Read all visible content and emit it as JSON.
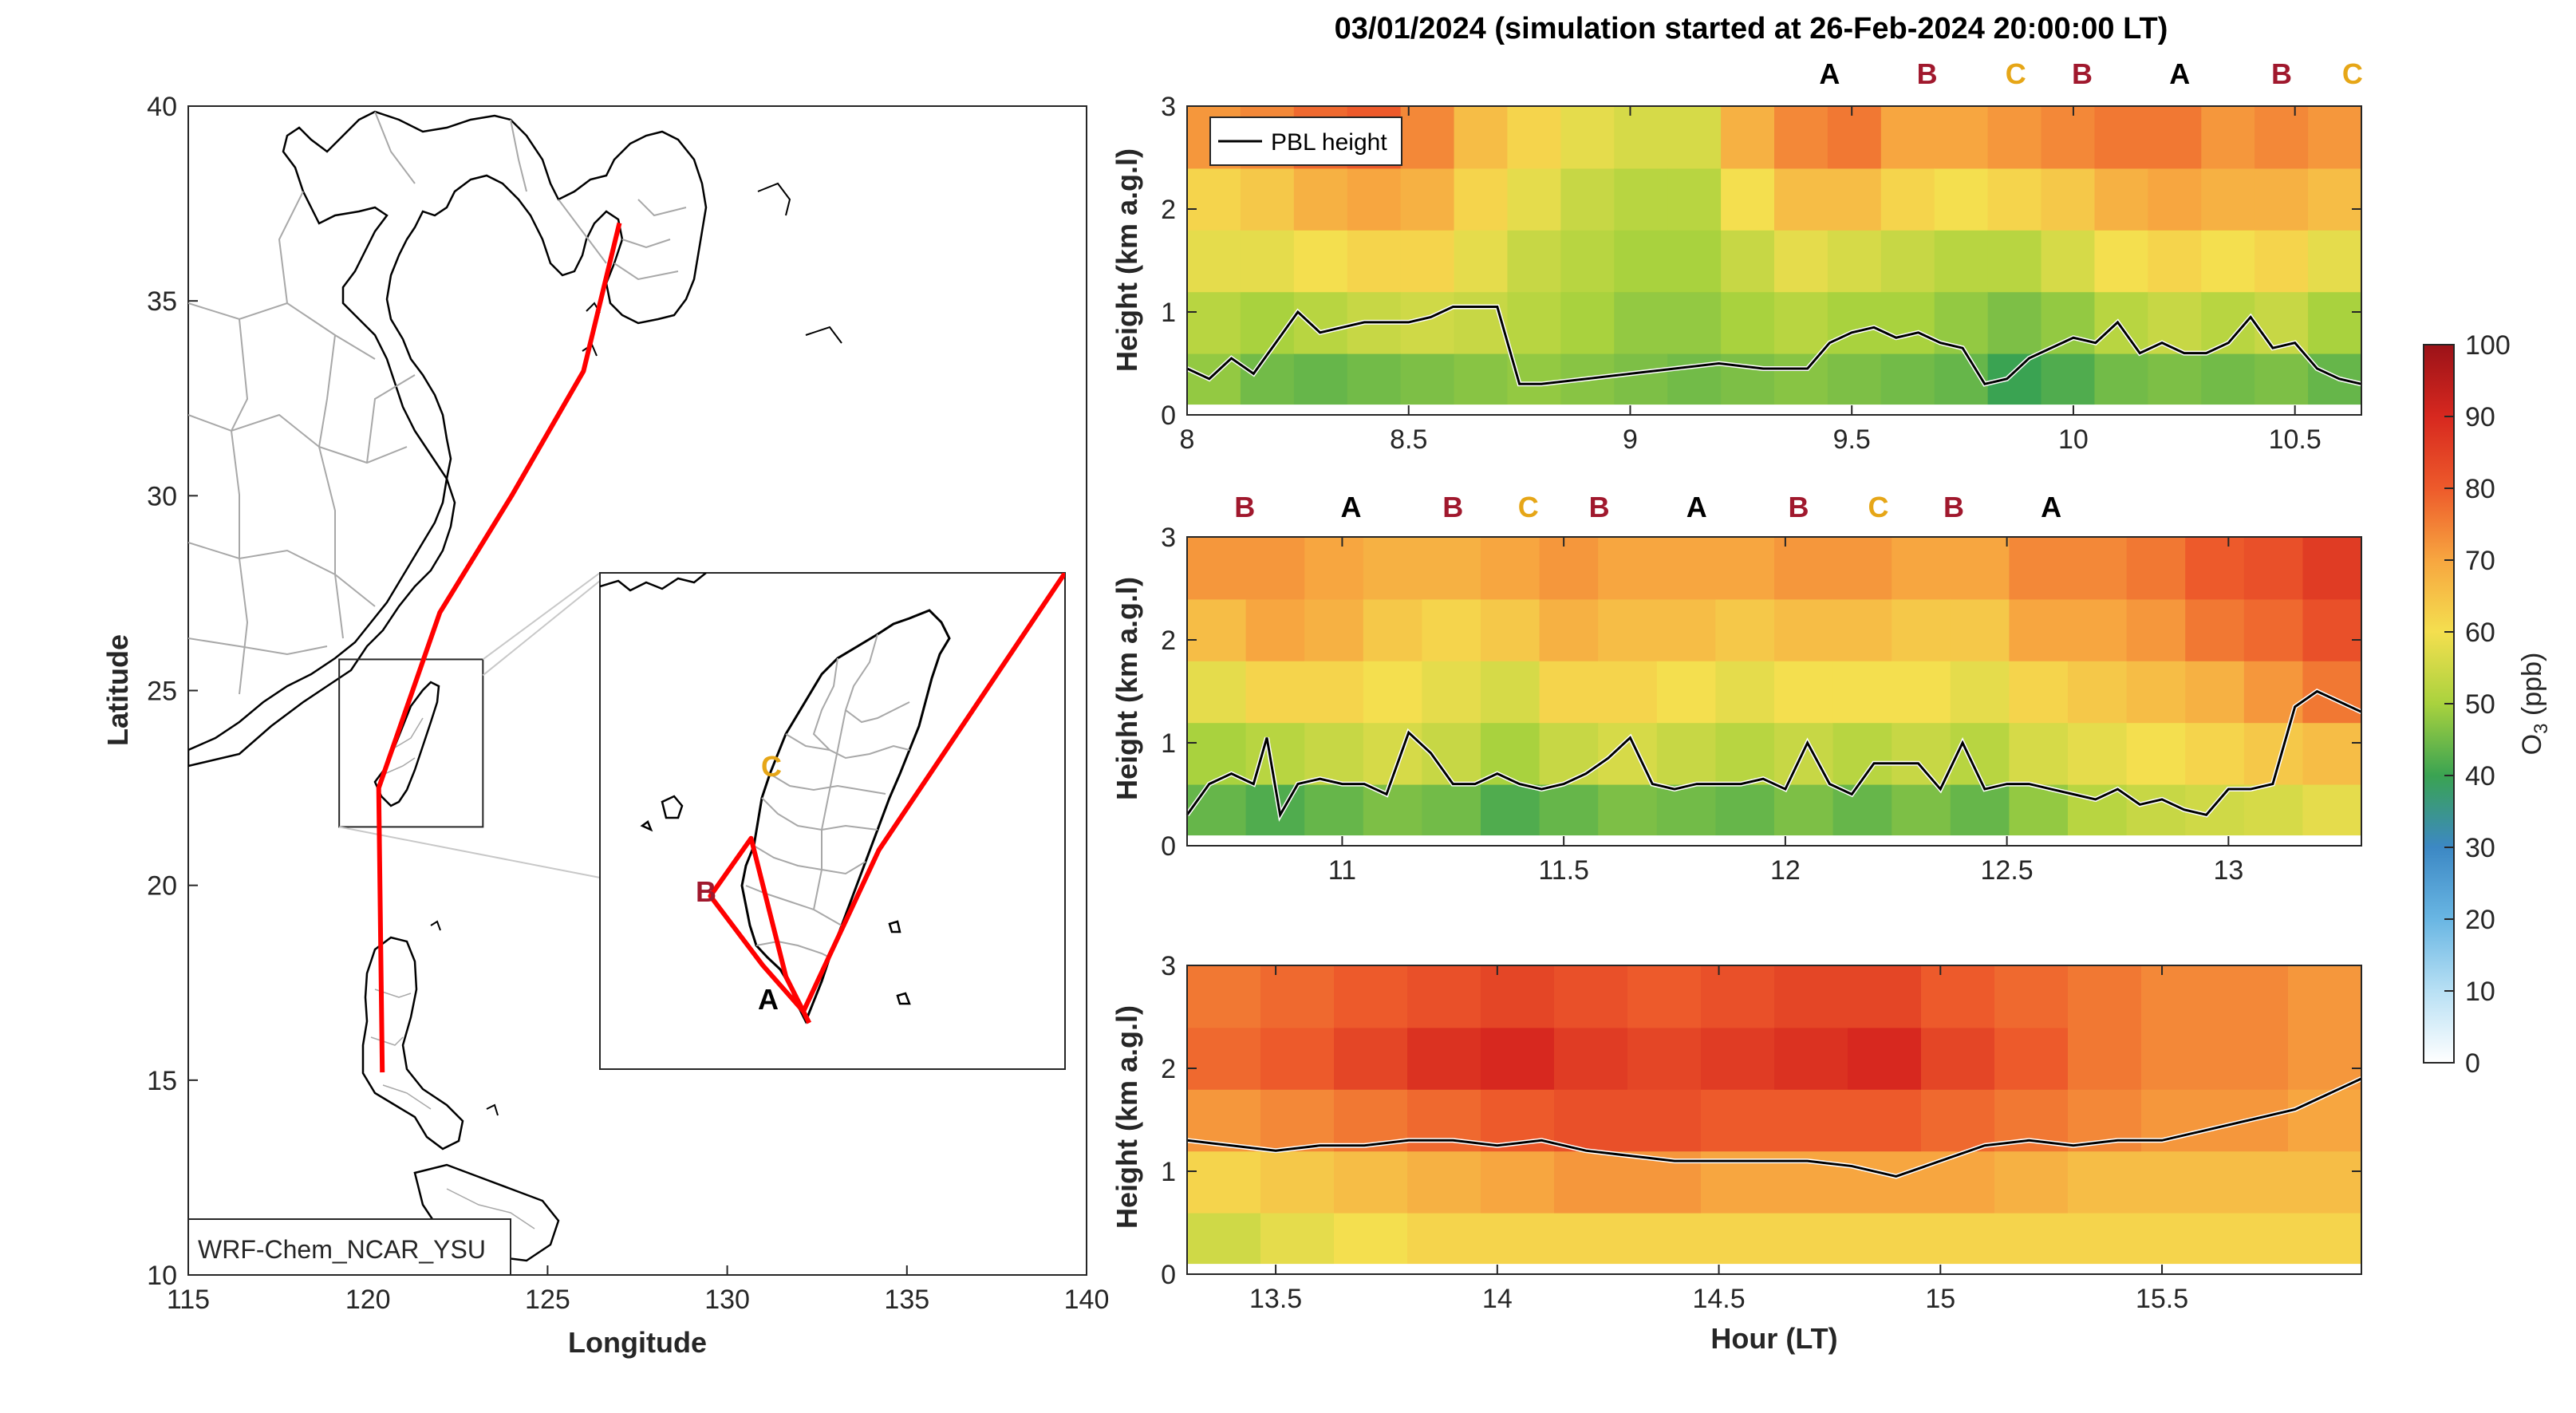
{
  "colors": {
    "track": "#ff0000",
    "marker_A": "#000000",
    "marker_B": "#a0182d",
    "marker_C": "#e6a617",
    "pbl": "#000000",
    "axes": "#262626"
  },
  "figure_title": "03/01/2024 (simulation started at 26-Feb-2024 20:00:00 LT)",
  "chart_data": [
    {
      "type": "map",
      "xlabel": "Longitude",
      "ylabel": "Latitude",
      "xlim": [
        115,
        140
      ],
      "ylim": [
        10,
        40
      ],
      "xticks": [
        "115",
        "120",
        "125",
        "130",
        "135",
        "140"
      ],
      "yticks": [
        "10",
        "15",
        "20",
        "25",
        "30",
        "35",
        "40"
      ],
      "model_label": "WRF-Chem_NCAR_YSU",
      "inset_box_lon": [
        119.2,
        123.2
      ],
      "inset_box_lat": [
        21.5,
        25.8
      ],
      "track_lonlat": [
        [
          127.0,
          37.0
        ],
        [
          126.0,
          33.2
        ],
        [
          124.0,
          30.0
        ],
        [
          122.0,
          27.0
        ],
        [
          120.3,
          22.5
        ],
        [
          120.4,
          15.2
        ]
      ],
      "inset": {
        "labels": [
          "C",
          "B",
          "A"
        ],
        "track_lonlat": [
          [
            123.2,
            25.8
          ],
          [
            121.6,
            23.4
          ],
          [
            120.95,
            22.0
          ],
          [
            120.6,
            22.4
          ],
          [
            120.15,
            23.0
          ],
          [
            120.5,
            23.5
          ],
          [
            120.8,
            22.3
          ],
          [
            121.0,
            21.9
          ]
        ]
      }
    },
    {
      "type": "heatmap",
      "ylabel": "Height (km a.g.l)",
      "xlim": [
        8,
        10.65
      ],
      "ylim": [
        0,
        3
      ],
      "xticks": [
        "8",
        "8.5",
        "9",
        "9.5",
        "10",
        "10.5"
      ],
      "yticks": [
        "0",
        "1",
        "2",
        "3"
      ],
      "legend": "PBL height",
      "labels": [
        {
          "t": "A",
          "x": 9.45
        },
        {
          "t": "B",
          "x": 9.67
        },
        {
          "t": "C",
          "x": 9.87
        },
        {
          "t": "B",
          "x": 10.02
        },
        {
          "t": "A",
          "x": 10.24
        },
        {
          "t": "B",
          "x": 10.47
        },
        {
          "t": "C",
          "x": 10.63
        }
      ],
      "pbl_x": [
        8.0,
        8.05,
        8.1,
        8.15,
        8.2,
        8.25,
        8.3,
        8.35,
        8.4,
        8.45,
        8.5,
        8.55,
        8.6,
        8.7,
        8.75,
        8.8,
        8.9,
        9.0,
        9.1,
        9.2,
        9.3,
        9.4,
        9.45,
        9.5,
        9.55,
        9.6,
        9.65,
        9.7,
        9.75,
        9.8,
        9.85,
        9.9,
        9.95,
        10.0,
        10.05,
        10.1,
        10.15,
        10.2,
        10.25,
        10.3,
        10.35,
        10.4,
        10.45,
        10.5,
        10.55,
        10.6,
        10.65
      ],
      "pbl_y": [
        0.45,
        0.35,
        0.55,
        0.4,
        0.7,
        1.0,
        0.8,
        0.85,
        0.9,
        0.9,
        0.9,
        0.95,
        1.05,
        1.05,
        0.3,
        0.3,
        0.35,
        0.4,
        0.45,
        0.5,
        0.45,
        0.45,
        0.7,
        0.8,
        0.85,
        0.75,
        0.8,
        0.7,
        0.65,
        0.3,
        0.35,
        0.55,
        0.65,
        0.75,
        0.7,
        0.9,
        0.6,
        0.7,
        0.6,
        0.6,
        0.7,
        0.95,
        0.65,
        0.7,
        0.45,
        0.35,
        0.3
      ],
      "o3_columns": [
        [
          48,
          52,
          58,
          62,
          72
        ],
        [
          45,
          50,
          58,
          64,
          74
        ],
        [
          44,
          52,
          60,
          68,
          78
        ],
        [
          45,
          54,
          62,
          70,
          80
        ],
        [
          46,
          55,
          62,
          68,
          74
        ],
        [
          47,
          54,
          58,
          62,
          66
        ],
        [
          48,
          52,
          54,
          58,
          62
        ],
        [
          47,
          50,
          52,
          54,
          58
        ],
        [
          46,
          48,
          50,
          52,
          56
        ],
        [
          45,
          48,
          50,
          52,
          56
        ],
        [
          46,
          50,
          54,
          60,
          68
        ],
        [
          47,
          52,
          58,
          66,
          74
        ],
        [
          46,
          50,
          56,
          66,
          76
        ],
        [
          45,
          50,
          54,
          62,
          70
        ],
        [
          44,
          48,
          52,
          60,
          70
        ],
        [
          40,
          46,
          52,
          62,
          72
        ],
        [
          42,
          48,
          56,
          64,
          74
        ],
        [
          45,
          52,
          60,
          68,
          76
        ],
        [
          46,
          54,
          62,
          70,
          76
        ],
        [
          45,
          52,
          60,
          68,
          72
        ],
        [
          46,
          54,
          62,
          68,
          74
        ],
        [
          44,
          50,
          58,
          66,
          72
        ]
      ]
    },
    {
      "type": "heatmap",
      "ylabel": "Height (km a.g.l)",
      "xlim": [
        10.65,
        13.3
      ],
      "ylim": [
        0,
        3
      ],
      "xticks": [
        "11",
        "11.5",
        "12",
        "12.5",
        "13"
      ],
      "yticks": [
        "0",
        "1",
        "2",
        "3"
      ],
      "labels": [
        {
          "t": "B",
          "x": 10.78
        },
        {
          "t": "A",
          "x": 11.02
        },
        {
          "t": "B",
          "x": 11.25
        },
        {
          "t": "C",
          "x": 11.42
        },
        {
          "t": "B",
          "x": 11.58
        },
        {
          "t": "A",
          "x": 11.8
        },
        {
          "t": "B",
          "x": 12.03
        },
        {
          "t": "C",
          "x": 12.21
        },
        {
          "t": "B",
          "x": 12.38
        },
        {
          "t": "A",
          "x": 12.6
        }
      ],
      "pbl_x": [
        10.65,
        10.7,
        10.75,
        10.8,
        10.83,
        10.86,
        10.9,
        10.95,
        11.0,
        11.05,
        11.1,
        11.15,
        11.2,
        11.25,
        11.3,
        11.35,
        11.4,
        11.45,
        11.5,
        11.55,
        11.6,
        11.65,
        11.7,
        11.75,
        11.8,
        11.85,
        11.9,
        11.95,
        12.0,
        12.05,
        12.1,
        12.15,
        12.2,
        12.25,
        12.3,
        12.35,
        12.4,
        12.45,
        12.5,
        12.55,
        12.6,
        12.65,
        12.7,
        12.75,
        12.8,
        12.85,
        12.9,
        12.95,
        13.0,
        13.05,
        13.1,
        13.15,
        13.2,
        13.25,
        13.3
      ],
      "pbl_y": [
        0.3,
        0.6,
        0.7,
        0.6,
        1.05,
        0.3,
        0.6,
        0.65,
        0.6,
        0.6,
        0.5,
        1.1,
        0.9,
        0.6,
        0.6,
        0.7,
        0.6,
        0.55,
        0.6,
        0.7,
        0.85,
        1.05,
        0.6,
        0.55,
        0.6,
        0.6,
        0.6,
        0.65,
        0.55,
        1.0,
        0.6,
        0.5,
        0.8,
        0.8,
        0.8,
        0.55,
        1.0,
        0.55,
        0.6,
        0.6,
        0.55,
        0.5,
        0.45,
        0.55,
        0.4,
        0.45,
        0.35,
        0.3,
        0.55,
        0.55,
        0.6,
        1.35,
        1.5,
        1.4,
        1.3
      ],
      "o3_columns": [
        [
          44,
          50,
          58,
          66,
          72
        ],
        [
          42,
          52,
          62,
          70,
          72
        ],
        [
          44,
          54,
          62,
          68,
          70
        ],
        [
          46,
          56,
          60,
          64,
          68
        ],
        [
          45,
          54,
          58,
          62,
          68
        ],
        [
          42,
          50,
          56,
          64,
          70
        ],
        [
          44,
          54,
          62,
          68,
          72
        ],
        [
          46,
          56,
          62,
          66,
          70
        ],
        [
          45,
          54,
          60,
          66,
          70
        ],
        [
          44,
          52,
          58,
          64,
          70
        ],
        [
          46,
          54,
          60,
          66,
          72
        ],
        [
          44,
          52,
          60,
          66,
          72
        ],
        [
          46,
          54,
          60,
          64,
          70
        ],
        [
          44,
          52,
          58,
          64,
          70
        ],
        [
          48,
          56,
          62,
          70,
          74
        ],
        [
          52,
          58,
          64,
          70,
          74
        ],
        [
          54,
          60,
          66,
          72,
          76
        ],
        [
          55,
          62,
          68,
          76,
          80
        ],
        [
          56,
          64,
          72,
          78,
          82
        ],
        [
          58,
          66,
          76,
          82,
          86
        ]
      ]
    },
    {
      "type": "heatmap",
      "xlabel": "Hour (LT)",
      "ylabel": "Height (km a.g.l)",
      "xlim": [
        13.3,
        15.95
      ],
      "ylim": [
        0,
        3
      ],
      "xticks": [
        "13.5",
        "14",
        "14.5",
        "15",
        "15.5"
      ],
      "yticks": [
        "0",
        "1",
        "2",
        "3"
      ],
      "pbl_x": [
        13.3,
        13.4,
        13.5,
        13.6,
        13.7,
        13.8,
        13.9,
        14.0,
        14.1,
        14.2,
        14.3,
        14.4,
        14.5,
        14.6,
        14.7,
        14.8,
        14.9,
        15.0,
        15.1,
        15.2,
        15.3,
        15.4,
        15.5,
        15.6,
        15.7,
        15.8,
        15.9,
        15.95
      ],
      "pbl_y": [
        1.3,
        1.25,
        1.2,
        1.25,
        1.25,
        1.3,
        1.3,
        1.25,
        1.3,
        1.2,
        1.15,
        1.1,
        1.1,
        1.1,
        1.1,
        1.05,
        0.95,
        1.1,
        1.25,
        1.3,
        1.25,
        1.3,
        1.3,
        1.4,
        1.5,
        1.6,
        1.8,
        1.9
      ],
      "o3_columns": [
        [
          55,
          62,
          72,
          78,
          76
        ],
        [
          58,
          64,
          74,
          80,
          78
        ],
        [
          60,
          66,
          76,
          84,
          80
        ],
        [
          62,
          68,
          78,
          88,
          82
        ],
        [
          62,
          70,
          80,
          90,
          84
        ],
        [
          62,
          72,
          82,
          86,
          82
        ],
        [
          62,
          72,
          82,
          84,
          80
        ],
        [
          62,
          70,
          80,
          86,
          82
        ],
        [
          62,
          70,
          80,
          88,
          84
        ],
        [
          62,
          70,
          80,
          90,
          84
        ],
        [
          62,
          70,
          78,
          84,
          80
        ],
        [
          62,
          68,
          76,
          80,
          78
        ],
        [
          62,
          66,
          74,
          76,
          76
        ],
        [
          62,
          66,
          72,
          74,
          74
        ],
        [
          62,
          66,
          72,
          74,
          74
        ],
        [
          62,
          66,
          70,
          72,
          72
        ]
      ]
    },
    {
      "type": "colorbar",
      "label": "O3 (ppb)",
      "min": 0,
      "max": 100,
      "ticks": [
        "0",
        "10",
        "20",
        "30",
        "40",
        "50",
        "60",
        "70",
        "80",
        "90",
        "100"
      ]
    }
  ]
}
